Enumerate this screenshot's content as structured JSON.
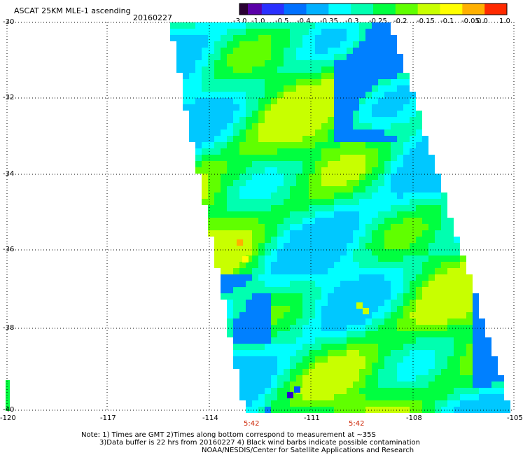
{
  "header": {
    "title": "ASCAT 25KM MLE-1 ascending",
    "date": "20160227"
  },
  "colorbar": {
    "labels": [
      "-3.0",
      "-1.0",
      "-0.5",
      "-0.4",
      "-0.35",
      "-0.3",
      "-0.25",
      "-0.2",
      "-0.15",
      "-0.1",
      "-0.05",
      "0.0",
      "1.0"
    ],
    "colors": [
      "#2a0033",
      "#5a00a8",
      "#2a30ff",
      "#0070ff",
      "#00b0ff",
      "#00ffff",
      "#00ffb0",
      "#00ff40",
      "#60ff00",
      "#c8ff00",
      "#ffff00",
      "#ffb000",
      "#ff2a00"
    ]
  },
  "axes": {
    "y_labels": [
      "-30",
      "-32",
      "-34",
      "-36",
      "-38",
      "-40"
    ],
    "x_labels": [
      "-120",
      "-117",
      "-114",
      "-111",
      "-108",
      "-105"
    ]
  },
  "times": [
    "5:42",
    "5:42"
  ],
  "notes": [
    "Note: 1) Times are GMT 2)Times along bottom correspond to measurement at ~35S",
    "3)Data buffer is 22 hrs from 20160227 4) Black wind barbs indicate possible contamination",
    "NOAA/NESDIS/Center for Satellite Applications and Research"
  ]
}
